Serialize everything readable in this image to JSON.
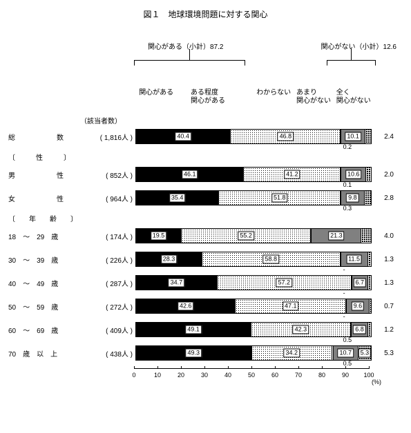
{
  "title": "図１　地球環境問題に対する関心",
  "group_yes": "関心がある（小計）87.2",
  "group_no": "関心がない（小計）12.6",
  "count_head": "（該当者数）",
  "categories": [
    {
      "label": "関心がある"
    },
    {
      "label": "ある程度\n関心がある"
    },
    {
      "label": "わからない"
    },
    {
      "label": "あまり\n関心がない"
    },
    {
      "label": "全く\n関心がない"
    }
  ],
  "fills": [
    "f0",
    "f1",
    "f2",
    "f3",
    "f4"
  ],
  "min_label_width": 5,
  "sections": [
    {
      "head": null,
      "rows": [
        {
          "label": "総　　　　　　数",
          "count": "( 1,816人 )",
          "segs": [
            40.4,
            46.8,
            0.2,
            10.1,
            2.4
          ],
          "below": "0.2",
          "end": "2.4"
        }
      ]
    },
    {
      "head": "〔　　　性　　　〕",
      "rows": [
        {
          "label": "男　　　　　　性",
          "count": "(  852人 )",
          "segs": [
            46.1,
            41.2,
            0.1,
            10.6,
            2.0
          ],
          "below": "0.1",
          "end": "2.0"
        },
        {
          "label": "女　　　　　　性",
          "count": "(  964人 )",
          "segs": [
            35.4,
            51.8,
            0.3,
            9.8,
            2.8
          ],
          "below": "0.3",
          "end": "2.8"
        }
      ]
    },
    {
      "head": "〔　　年　　齢　　〕",
      "rows": [
        {
          "label": "18　～　29　歳",
          "count": "(  174人 )",
          "segs": [
            19.5,
            55.2,
            0,
            21.3,
            4.0
          ],
          "below": null,
          "end": "4.0"
        },
        {
          "label": "30　～　39　歳",
          "count": "(  226人 )",
          "segs": [
            28.3,
            58.8,
            0,
            11.5,
            1.3
          ],
          "below": "-",
          "end": "1.3"
        },
        {
          "label": "40　～　49　歳",
          "count": "(  287人 )",
          "segs": [
            34.7,
            57.2,
            0,
            6.7,
            1.3
          ],
          "below": "-",
          "end": "1.3"
        },
        {
          "label": "50　～　59　歳",
          "count": "(  272人 )",
          "segs": [
            42.6,
            47.1,
            0,
            9.6,
            0.7
          ],
          "below": "-",
          "end": "0.7"
        },
        {
          "label": "60　～　69　歳",
          "count": "(  409人 )",
          "segs": [
            49.1,
            42.3,
            0.5,
            6.8,
            1.2
          ],
          "below": "0.5",
          "end": "1.2"
        },
        {
          "label": "70　歳　以　上",
          "count": "(  438人 )",
          "segs": [
            49.3,
            34.2,
            0.5,
            10.7,
            5.3
          ],
          "below": "0.5",
          "end": "5.3"
        }
      ]
    }
  ],
  "axis": {
    "min": 0,
    "max": 100,
    "step": 10,
    "unit": "(%)"
  }
}
